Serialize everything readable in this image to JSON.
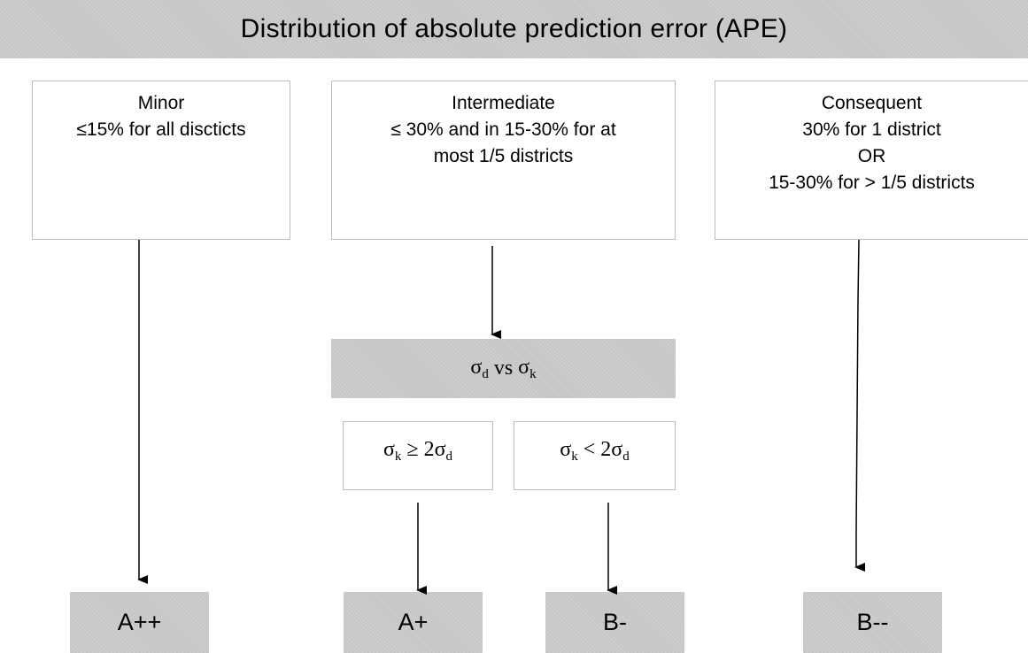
{
  "title": "Distribution of absolute prediction error (APE)",
  "categories": {
    "minor": {
      "label": "Minor",
      "desc": [
        "≤15% for all discticts"
      ]
    },
    "intermediate": {
      "label": "Intermediate",
      "desc": [
        "≤ 30% and in 15-30% for at",
        "most 1/5 districts"
      ]
    },
    "consequent": {
      "label": "Consequent",
      "desc": [
        "30% for 1 district",
        "OR",
        "15-30% for > 1/5 districts"
      ]
    }
  },
  "comparison": {
    "sym": "σ",
    "sub_d": "d",
    "sub_k": "k",
    "vs": "vs",
    "ge": "≥ 2",
    "lt": "< 2"
  },
  "outcomes": {
    "minor": "A++",
    "intermediate_ge": "A+",
    "intermediate_lt": "B-",
    "consequent": "B--"
  },
  "colors": {
    "fill_gray": "#c6c6c6",
    "border_gray": "#bdbdbd",
    "arrow": "#000000"
  }
}
